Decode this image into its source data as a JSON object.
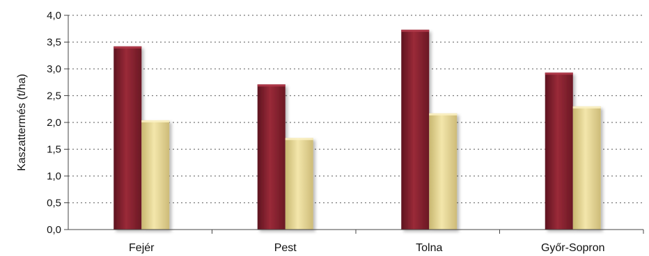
{
  "chart_data": {
    "type": "bar",
    "title": "",
    "xlabel": "",
    "ylabel": "Kaszattermés (t/ha)",
    "categories": [
      "Fejér",
      "Pest",
      "Tolna",
      "Győr-Sopron"
    ],
    "series": [
      {
        "color": "#8b2232",
        "values": [
          3.42,
          2.71,
          3.73,
          2.93
        ]
      },
      {
        "color": "#e6d596",
        "values": [
          2.04,
          1.71,
          2.17,
          2.3
        ]
      }
    ],
    "ylim": [
      0,
      4
    ],
    "yticks": [
      "0,0",
      "0,5",
      "1,0",
      "1,5",
      "2,0",
      "2,5",
      "3,0",
      "3,5",
      "4,0"
    ],
    "ytick_values": [
      0,
      0.5,
      1,
      1.5,
      2,
      2.5,
      3,
      3.5,
      4
    ],
    "grid": true,
    "legend": "none"
  }
}
